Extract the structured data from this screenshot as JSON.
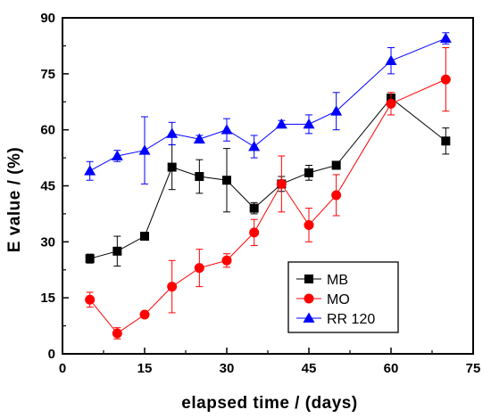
{
  "chart_data": {
    "type": "line",
    "xlabel": "elapsed time / (days)",
    "ylabel": "E value / (%)",
    "xlim": [
      0,
      75
    ],
    "ylim": [
      0,
      90
    ],
    "xticks": [
      0,
      15,
      30,
      45,
      60,
      75
    ],
    "yticks": [
      0,
      15,
      30,
      45,
      60,
      75,
      90
    ],
    "xtick_labels": [
      "0",
      "15",
      "30",
      "45",
      "60",
      "75"
    ],
    "ytick_labels": [
      "0",
      "15",
      "30",
      "45",
      "60",
      "75",
      "90"
    ],
    "grid": false,
    "legend_position": "bottom-right",
    "series": [
      {
        "name": "MB",
        "color": "#000000",
        "marker": "square",
        "x": [
          5,
          10,
          15,
          20,
          25,
          30,
          35,
          40,
          45,
          50,
          60,
          70
        ],
        "y": [
          25.5,
          27.5,
          31.5,
          50,
          47.5,
          46.5,
          39,
          45.5,
          48.5,
          50.5,
          68.5,
          57
        ],
        "err": [
          1.2,
          4,
          1,
          6,
          4.5,
          8.5,
          1.5,
          2,
          2,
          1,
          1,
          3.5
        ]
      },
      {
        "name": "MO",
        "color": "#ff0000",
        "marker": "circle",
        "x": [
          5,
          10,
          15,
          20,
          25,
          30,
          35,
          40,
          45,
          50,
          60,
          70
        ],
        "y": [
          14.5,
          5.5,
          10.5,
          18,
          23,
          25,
          32.5,
          45.5,
          34.5,
          42.5,
          67,
          73.5
        ],
        "err": [
          2,
          1.5,
          0.5,
          7,
          5,
          1.8,
          3.5,
          7.5,
          4.5,
          5.5,
          3,
          8.5
        ]
      },
      {
        "name": "RR 120",
        "color": "#0000ff",
        "marker": "triangle",
        "x": [
          5,
          10,
          15,
          20,
          25,
          30,
          35,
          40,
          45,
          50,
          60,
          70
        ],
        "y": [
          49,
          53,
          54.5,
          59,
          57.5,
          60,
          55.5,
          61.5,
          61.5,
          65,
          78.5,
          84.5
        ],
        "err": [
          2.5,
          1.5,
          9,
          3,
          1,
          3,
          3,
          1,
          2.5,
          5,
          3.5,
          1.5
        ]
      }
    ]
  }
}
